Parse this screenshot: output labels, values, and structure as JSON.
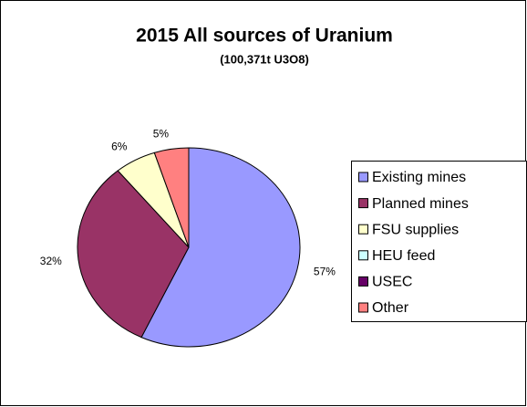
{
  "chart_data": {
    "type": "pie",
    "title": "2015 All sources of Uranium",
    "subtitle": "(100,371t U3O8)",
    "categories": [
      "Existing mines",
      "Planned mines",
      "FSU supplies",
      "HEU feed",
      "USEC",
      "Other"
    ],
    "values": [
      57,
      32,
      6,
      0,
      0,
      5
    ],
    "value_labels": [
      "57%",
      "32%",
      "6%",
      null,
      null,
      "5%"
    ],
    "colors": [
      "#9999ff",
      "#993366",
      "#ffffcc",
      "#ccffff",
      "#660066",
      "#ff8080"
    ],
    "legend": "right"
  }
}
